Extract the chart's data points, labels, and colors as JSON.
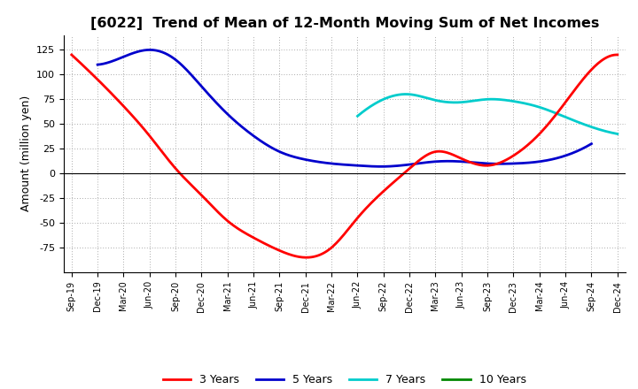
{
  "title": "[6022]  Trend of Mean of 12-Month Moving Sum of Net Incomes",
  "ylabel": "Amount (million yen)",
  "background_color": "#ffffff",
  "grid_color": "#aaaaaa",
  "title_fontsize": 11.5,
  "tick_labels": [
    "Sep-19",
    "Dec-19",
    "Mar-20",
    "Jun-20",
    "Sep-20",
    "Dec-20",
    "Mar-21",
    "Jun-21",
    "Sep-21",
    "Dec-21",
    "Mar-22",
    "Jun-22",
    "Sep-22",
    "Dec-22",
    "Mar-23",
    "Jun-23",
    "Sep-23",
    "Dec-23",
    "Mar-24",
    "Jun-24",
    "Sep-24",
    "Dec-24"
  ],
  "ylim": [
    -100,
    140
  ],
  "yticks": [
    -75,
    -50,
    -25,
    0,
    25,
    50,
    75,
    100,
    125
  ],
  "series": {
    "3yr": {
      "color": "#ff0000",
      "label": "3 Years",
      "values": [
        120,
        95,
        68,
        38,
        5,
        -22,
        -48,
        -65,
        -78,
        -85,
        -75,
        -45,
        -18,
        5,
        22,
        15,
        8,
        18,
        40,
        72,
        105,
        120
      ]
    },
    "5yr": {
      "color": "#0000cc",
      "label": "5 Years",
      "values": [
        null,
        110,
        118,
        125,
        115,
        88,
        60,
        38,
        22,
        14,
        10,
        8,
        7,
        9,
        12,
        12,
        10,
        10,
        12,
        18,
        30,
        null
      ]
    },
    "7yr": {
      "color": "#00cccc",
      "label": "7 Years",
      "values": [
        null,
        null,
        null,
        null,
        null,
        null,
        null,
        null,
        null,
        null,
        null,
        58,
        75,
        80,
        74,
        72,
        75,
        73,
        67,
        57,
        47,
        40
      ]
    },
    "10yr": {
      "color": "#008800",
      "label": "10 Years",
      "values": [
        null,
        null,
        null,
        null,
        null,
        null,
        null,
        null,
        null,
        null,
        null,
        null,
        null,
        null,
        null,
        null,
        null,
        null,
        null,
        null,
        null,
        null
      ]
    }
  }
}
